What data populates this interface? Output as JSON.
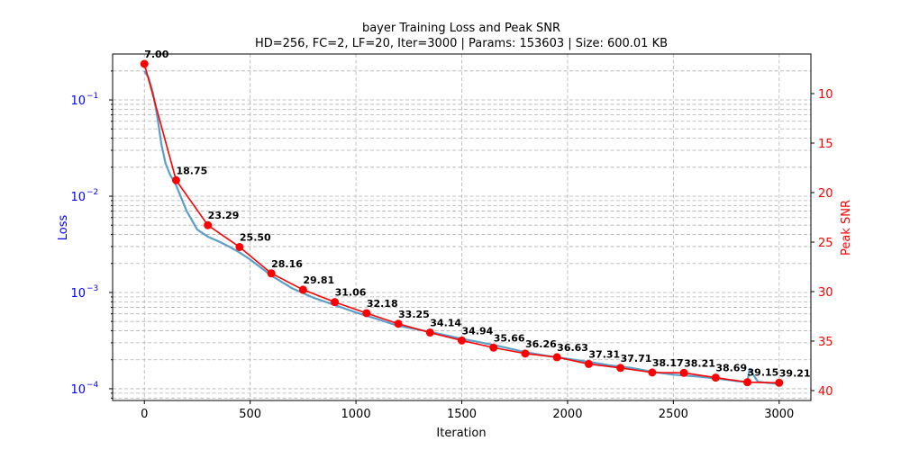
{
  "chart_data": {
    "type": "line",
    "title": "bayer Training Loss and Peak SNR",
    "subtitle": "HD=256, FC=2, LF=20, Iter=3000 | Params: 153603 | Size: 600.01 KB",
    "xlabel": "Iteration",
    "ylabel_left": "Loss",
    "ylabel_right": "Peak SNR",
    "xlim": [
      -150,
      3150
    ],
    "ylim_left": [
      7.55e-05,
      0.3
    ],
    "ylim_right": [
      41.0,
      6.0
    ],
    "y_left_scale": "log",
    "y_right_inverted": true,
    "grid": true,
    "x_ticks": [
      "0",
      "500",
      "1000",
      "1500",
      "2000",
      "2500",
      "3000"
    ],
    "y_left_ticks": [
      "10",
      "10",
      "10",
      "10"
    ],
    "y_left_tick_exponents": [
      "−1",
      "−2",
      "−3",
      "−4"
    ],
    "y_right_ticks": [
      "10",
      "15",
      "20",
      "25",
      "30",
      "35",
      "40"
    ],
    "colors": {
      "loss": "#5b9ec9",
      "psnr": "#ff0000",
      "left_axis": "#0000ff",
      "right_axis": "#ff0000"
    },
    "series": [
      {
        "name": "Loss",
        "axis": "left",
        "x": [
          0,
          20,
          40,
          60,
          80,
          100,
          120,
          150,
          200,
          250,
          300,
          350,
          400,
          450,
          500,
          600,
          700,
          800,
          900,
          1000,
          1100,
          1200,
          1300,
          1400,
          1500,
          1600,
          1700,
          1800,
          1900,
          2000,
          2100,
          2200,
          2300,
          2400,
          2500,
          2600,
          2700,
          2800,
          2850,
          2860,
          2900,
          3000
        ],
        "y": [
          0.2,
          0.17,
          0.12,
          0.07,
          0.035,
          0.022,
          0.017,
          0.013,
          0.007,
          0.0045,
          0.0038,
          0.0034,
          0.003,
          0.0026,
          0.0022,
          0.0015,
          0.0011,
          0.00088,
          0.00074,
          0.00062,
          0.00053,
          0.00045,
          0.00041,
          0.00037,
          0.00033,
          0.0003,
          0.00027,
          0.00024,
          0.00022,
          0.000205,
          0.00019,
          0.000175,
          0.000165,
          0.00015,
          0.00014,
          0.000135,
          0.000128,
          0.00012,
          0.000118,
          0.00016,
          0.000118,
          0.000112
        ]
      },
      {
        "name": "Peak SNR",
        "axis": "right",
        "x": [
          0,
          150,
          300,
          450,
          600,
          750,
          900,
          1050,
          1200,
          1350,
          1500,
          1650,
          1800,
          1950,
          2100,
          2250,
          2400,
          2550,
          2700,
          2850,
          3000
        ],
        "y": [
          7.0,
          18.75,
          23.29,
          25.5,
          28.16,
          29.81,
          31.06,
          32.18,
          33.25,
          34.14,
          34.94,
          35.66,
          36.26,
          36.63,
          37.31,
          37.71,
          38.17,
          38.21,
          38.69,
          39.15,
          39.21
        ],
        "labels": [
          "7.00",
          "18.75",
          "23.29",
          "25.50",
          "28.16",
          "29.81",
          "31.06",
          "32.18",
          "33.25",
          "34.14",
          "34.94",
          "35.66",
          "36.26",
          "36.63",
          "37.31",
          "37.71",
          "38.17",
          "38.21",
          "38.69",
          "39.15",
          "39.21"
        ]
      }
    ]
  }
}
